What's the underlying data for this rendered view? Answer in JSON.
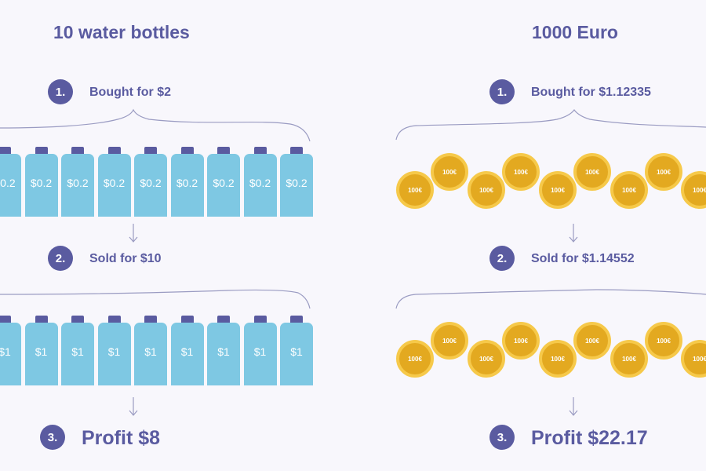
{
  "left": {
    "title": "10 water bottles",
    "steps": [
      {
        "num": "1.",
        "label": "Bought for $2"
      },
      {
        "num": "2.",
        "label": "Sold for $10"
      },
      {
        "num": "3.",
        "label": "Profit $8"
      }
    ],
    "bought_price": "$0.2",
    "sold_price": "$1"
  },
  "right": {
    "title": "1000 Euro",
    "steps": [
      {
        "num": "1.",
        "label": "Bought for $1.12335"
      },
      {
        "num": "2.",
        "label": "Sold for $1.14552"
      },
      {
        "num": "3.",
        "label": "Profit $22.17"
      }
    ],
    "coin_label": "100€"
  },
  "colors": {
    "accent": "#5a5ba0",
    "bottle": "#7ec8e3",
    "coin": "#e3a920",
    "coin_rim": "#f6c94a",
    "background": "#f8f7fc"
  },
  "icons": {
    "bottle": "water-bottle-icon",
    "coin": "euro-coin-icon",
    "arrow": "arrow-down-icon"
  }
}
